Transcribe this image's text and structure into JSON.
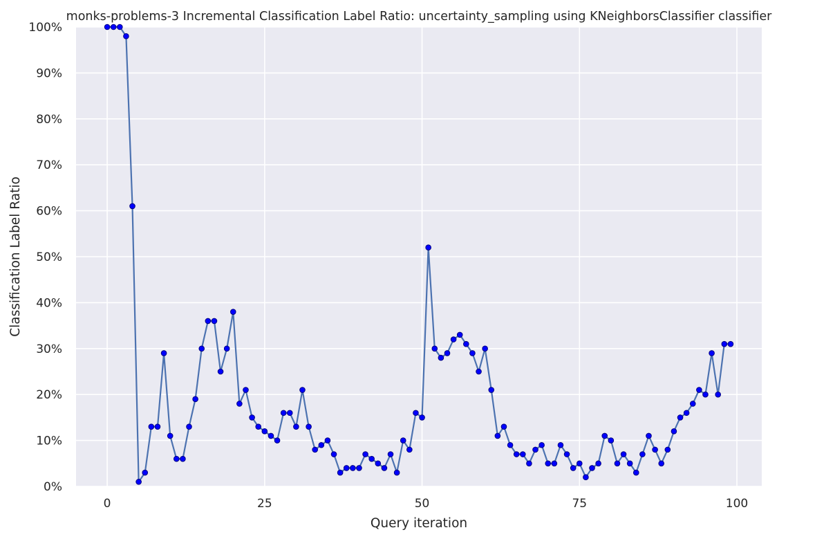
{
  "chart_data": {
    "type": "line",
    "title": "monks-problems-3 Incremental Classification Label Ratio: uncertainty_sampling using KNeighborsClassifier classifier",
    "xlabel": "Query iteration",
    "ylabel": "Classification Label Ratio",
    "xlim": [
      -4.95,
      103.95
    ],
    "ylim": [
      0,
      100
    ],
    "x_ticks": [
      0,
      25,
      50,
      75,
      100
    ],
    "y_ticks": [
      0,
      10,
      20,
      30,
      40,
      50,
      60,
      70,
      80,
      90,
      100
    ],
    "y_tick_format": "percent",
    "grid": true,
    "background": "#eaeaf2",
    "grid_color": "#ffffff",
    "line_color": "#4c72b0",
    "marker_color": "#0000ff",
    "marker_edge_color": "#000080",
    "series": [
      {
        "x": [
          0,
          1,
          2,
          3,
          4,
          5,
          6,
          7,
          8,
          9,
          10,
          11,
          12,
          13,
          14,
          15,
          16,
          17,
          18,
          19,
          20,
          21,
          22,
          23,
          24,
          25,
          26,
          27,
          28,
          29,
          30,
          31,
          32,
          33,
          34,
          35,
          36,
          37,
          38,
          39,
          40,
          41,
          42,
          43,
          44,
          45,
          46,
          47,
          48,
          49,
          50,
          51,
          52,
          53,
          54,
          55,
          56,
          57,
          58,
          59,
          60,
          61,
          62,
          63,
          64,
          65,
          66,
          67,
          68,
          69,
          70,
          71,
          72,
          73,
          74,
          75,
          76,
          77,
          78,
          79,
          80,
          81,
          82,
          83,
          84,
          85,
          86,
          87,
          88,
          89,
          90,
          91,
          92,
          93,
          94,
          95,
          96,
          97,
          98,
          99
        ],
        "values": [
          100,
          100,
          100,
          98,
          61,
          1,
          3,
          13,
          13,
          29,
          11,
          6,
          6,
          13,
          19,
          30,
          36,
          36,
          25,
          30,
          38,
          18,
          21,
          15,
          13,
          12,
          11,
          10,
          16,
          16,
          13,
          21,
          13,
          8,
          9,
          10,
          7,
          3,
          4,
          4,
          4,
          7,
          6,
          5,
          4,
          7,
          3,
          10,
          8,
          16,
          15,
          52,
          30,
          28,
          29,
          32,
          33,
          31,
          29,
          25,
          30,
          21,
          11,
          13,
          9,
          7,
          7,
          5,
          8,
          9,
          5,
          5,
          9,
          7,
          4,
          5,
          2,
          4,
          5,
          11,
          10,
          5,
          7,
          5,
          3,
          7,
          11,
          8,
          5,
          8,
          12,
          15,
          16,
          18,
          21,
          20,
          29,
          20,
          31,
          31
        ]
      }
    ]
  }
}
